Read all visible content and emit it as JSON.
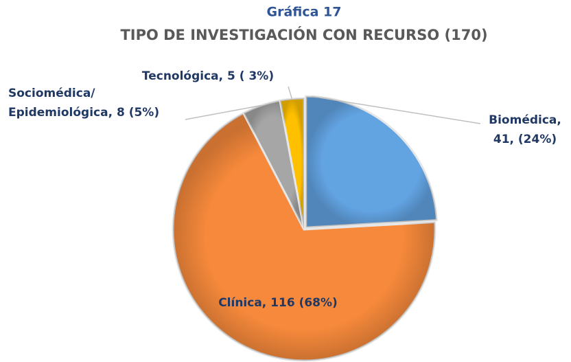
{
  "chart_data": {
    "type": "pie",
    "title": [
      "Gráfica  17",
      "TIPO DE INVESTIGACIÓN CON RECURSO (170)"
    ],
    "values": [
      41,
      116,
      8,
      5
    ],
    "value_labels": [
      [
        "Biomédica,",
        "41, (24%)"
      ],
      [
        "Clínica, 116 (68%)"
      ],
      [
        "Sociomédica/",
        "Epidemiológica, 8 (5%)"
      ],
      [
        "Tecnológica, 5 ( 3%)"
      ]
    ],
    "colors": [
      "#62a3e2",
      "#f6893b",
      "#a6a6a6",
      "#ffc000"
    ]
  }
}
